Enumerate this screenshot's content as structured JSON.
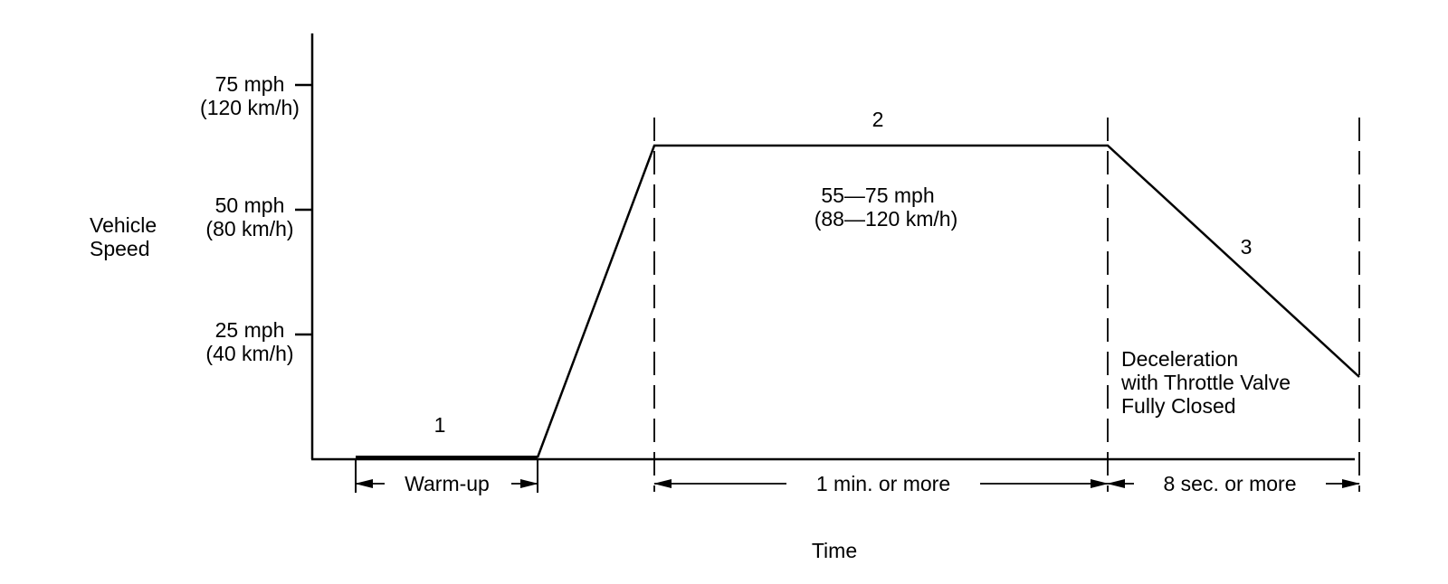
{
  "y_axis": {
    "label_lines": [
      "Vehicle",
      "Speed"
    ],
    "ticks": [
      {
        "line1": "75 mph",
        "line2": "(120 km/h)"
      },
      {
        "line1": "50 mph",
        "line2": "(80 km/h)"
      },
      {
        "line1": "25 mph",
        "line2": "(40 km/h)"
      }
    ]
  },
  "x_axis": {
    "label": "Time"
  },
  "phases": [
    {
      "number": "1",
      "duration_label": "Warm-up"
    },
    {
      "number": "2",
      "duration_label": "1 min. or more",
      "speed_lines": [
        "55—75 mph",
        "(88—120 km/h)"
      ]
    },
    {
      "number": "3",
      "duration_label": "8 sec. or more",
      "note_lines": [
        "Deceleration",
        "with Throttle Valve",
        "Fully Closed"
      ]
    }
  ]
}
